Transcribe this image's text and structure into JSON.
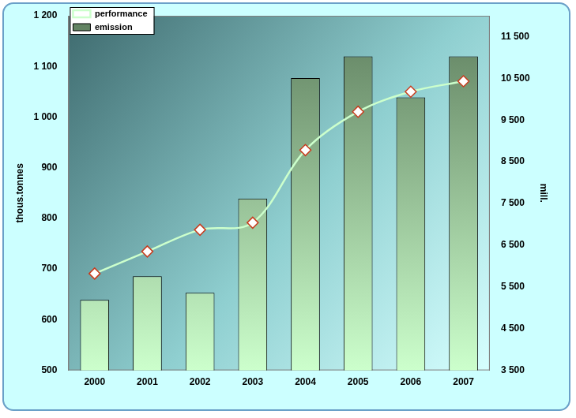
{
  "chart_data": {
    "type": "bar",
    "categories": [
      "2000",
      "2001",
      "2002",
      "2003",
      "2004",
      "2005",
      "2006",
      "2007"
    ],
    "series": [
      {
        "name": "emission",
        "type": "bar",
        "color": "#5f7f5f",
        "values": [
          639,
          686,
          653,
          839,
          1077,
          1120,
          1039,
          1120
        ]
      },
      {
        "name": "performance",
        "type": "line",
        "axis": "y2",
        "color": "#ccffcc",
        "marker": "diamond",
        "values": [
          5820,
          6350,
          6870,
          7040,
          8780,
          9700,
          10180,
          10430
        ]
      }
    ],
    "y_label": "thous.tonnes",
    "y2_label": "mill.",
    "ylim": [
      500,
      1200
    ],
    "yticks": [
      500,
      600,
      700,
      800,
      900,
      {
        "value": 1000,
        "label": "1 000"
      },
      {
        "value": 1100,
        "label": "1 100"
      },
      {
        "value": 1200,
        "label": "1 200"
      }
    ],
    "y2lim": [
      3500,
      12000
    ],
    "y2ticks": [
      {
        "value": 3500,
        "label": "3 500"
      },
      {
        "value": 4500,
        "label": "4 500"
      },
      {
        "value": 5500,
        "label": "5 500"
      },
      {
        "value": 6500,
        "label": "6 500"
      },
      {
        "value": 7500,
        "label": "7 500"
      },
      {
        "value": 8500,
        "label": "8 500"
      },
      {
        "value": 9500,
        "label": "9 500"
      },
      {
        "value": 10500,
        "label": "10 500"
      },
      {
        "value": 11500,
        "label": "11 500"
      }
    ],
    "grid": false,
    "legend": "upper left"
  }
}
